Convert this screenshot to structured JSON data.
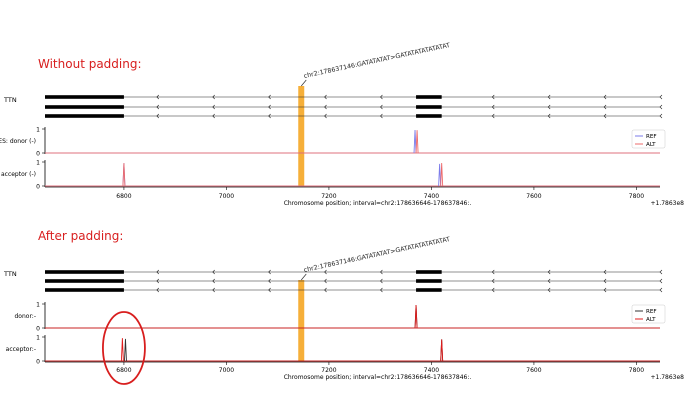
{
  "panels": [
    {
      "heading": "Without padding:",
      "variant_label": "chr2:178637146:GATATATAT>GATATATATATATAT",
      "gene_label": "TTN",
      "tracks": [
        {
          "ylabel": "ES: donor (-)",
          "ytick_top": "1",
          "ytick_bottom": "0"
        },
        {
          "ylabel": "acceptor (-)",
          "ytick_top": "1",
          "ytick_bottom": "0"
        }
      ],
      "legend": [
        "REF",
        "ALT"
      ],
      "xlabel": "Chromosome position; interval=chr2:178636646-178637846:.",
      "x_ticks": [
        "6800",
        "7000",
        "7200",
        "7400",
        "7600",
        "7800"
      ],
      "offset_label": "+1.7863e8"
    },
    {
      "heading": "After padding:",
      "variant_label": "chr2:178637146:GATATATAT>GATATATATATATAT",
      "gene_label": "TTN",
      "tracks": [
        {
          "ylabel": "donor:-",
          "ytick_top": "1",
          "ytick_bottom": "0"
        },
        {
          "ylabel": "acceptor:-",
          "ytick_top": "1",
          "ytick_bottom": "0"
        }
      ],
      "legend": [
        "REF",
        "ALT"
      ],
      "xlabel": "Chromosome position; interval=chr2:178636646-178637846:.",
      "x_ticks": [
        "6800",
        "7000",
        "7200",
        "7400",
        "7600",
        "7800"
      ],
      "offset_label": "+1.7863e8"
    }
  ],
  "chart_data": [
    {
      "type": "line",
      "x_offset": 178630000,
      "xlim": [
        6646,
        7846
      ],
      "ylim": [
        0,
        1
      ],
      "variant_position": 7146,
      "exons": [
        [
          6646,
          6800
        ],
        [
          7370,
          7420
        ]
      ],
      "series": [
        {
          "name": "REF",
          "color": "#7b7bea",
          "donor": [
            [
              7368,
              0.96
            ]
          ],
          "acceptor": [
            [
              6800,
              0.95
            ],
            [
              7416,
              0.92
            ]
          ]
        },
        {
          "name": "ALT",
          "color": "#ee6b6b",
          "donor": [
            [
              7372,
              0.95
            ]
          ],
          "acceptor": [
            [
              6800,
              0.95
            ],
            [
              7420,
              0.96
            ]
          ]
        }
      ]
    },
    {
      "type": "line",
      "x_offset": 178630000,
      "xlim": [
        6646,
        7846
      ],
      "ylim": [
        0,
        1
      ],
      "variant_position": 7146,
      "exons": [
        [
          6646,
          6800
        ],
        [
          7370,
          7420
        ]
      ],
      "series": [
        {
          "name": "REF",
          "color": "#333333",
          "donor": [
            [
              7370,
              0.96
            ]
          ],
          "acceptor": [
            [
              6803,
              0.92
            ],
            [
              7420,
              0.9
            ]
          ]
        },
        {
          "name": "ALT",
          "color": "#e01b1b",
          "donor": [
            [
              7370,
              0.96
            ]
          ],
          "acceptor": [
            [
              6797,
              0.95
            ],
            [
              7420,
              0.9
            ]
          ]
        }
      ]
    }
  ],
  "colors": {
    "annotation_red": "#d81e1e",
    "variant_band": "#f5a623"
  }
}
